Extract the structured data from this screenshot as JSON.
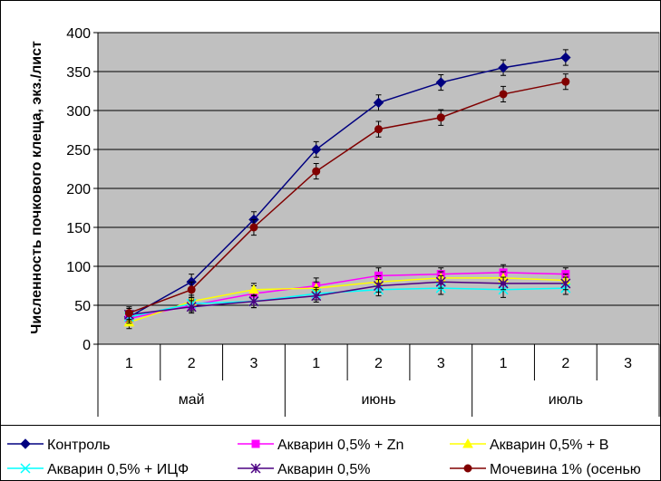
{
  "chart_data": {
    "type": "line",
    "ylabel": "Численность почкового клеща, экз./лист",
    "ylim": [
      0,
      400
    ],
    "yticks": [
      0,
      50,
      100,
      150,
      200,
      250,
      300,
      350,
      400
    ],
    "categories": [
      "1",
      "2",
      "3",
      "1",
      "2",
      "3",
      "1",
      "2",
      "3"
    ],
    "groups": [
      {
        "label": "май",
        "count": 3
      },
      {
        "label": "июнь",
        "count": 3
      },
      {
        "label": "июль",
        "count": 3
      }
    ],
    "grid": true,
    "legend_position": "bottom",
    "series": [
      {
        "name": "Контроль",
        "color": "#000080",
        "marker": "diamond",
        "values": [
          35,
          80,
          160,
          250,
          310,
          336,
          355,
          368,
          null
        ],
        "errors": [
          8,
          10,
          10,
          10,
          10,
          10,
          10,
          10,
          null
        ]
      },
      {
        "name": "Акварин 0,5% + Zn",
        "color": "#ff00ff",
        "marker": "square",
        "values": [
          33,
          50,
          65,
          75,
          88,
          90,
          92,
          90,
          null
        ],
        "errors": [
          8,
          8,
          10,
          10,
          10,
          8,
          10,
          8,
          null
        ]
      },
      {
        "name": "Акварин 0,5% + В",
        "color": "#ffff00",
        "marker": "triangle",
        "values": [
          28,
          55,
          70,
          72,
          80,
          85,
          85,
          82,
          null
        ],
        "errors": [
          8,
          8,
          8,
          8,
          8,
          8,
          8,
          8,
          null
        ]
      },
      {
        "name": "Акварин 0,5% + ИЦФ",
        "color": "#00ffff",
        "marker": "x",
        "values": [
          35,
          52,
          55,
          65,
          70,
          72,
          70,
          72,
          null
        ],
        "errors": [
          8,
          8,
          8,
          8,
          8,
          8,
          10,
          8,
          null
        ]
      },
      {
        "name": "Акварин 0,5%",
        "color": "#4b0082",
        "marker": "star",
        "values": [
          38,
          48,
          55,
          62,
          75,
          80,
          78,
          78,
          null
        ],
        "errors": [
          8,
          8,
          8,
          8,
          8,
          8,
          8,
          8,
          null
        ]
      },
      {
        "name": "Мочевина 1% (осенью",
        "color": "#800000",
        "marker": "circle",
        "values": [
          40,
          70,
          150,
          222,
          276,
          291,
          321,
          337,
          null
        ],
        "errors": [
          8,
          10,
          10,
          10,
          10,
          10,
          10,
          10,
          null
        ]
      }
    ]
  }
}
